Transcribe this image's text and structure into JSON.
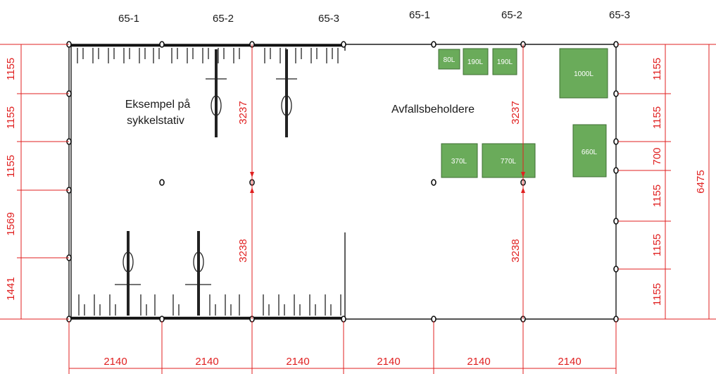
{
  "column_labels": [
    "65-1",
    "65-2",
    "65-3",
    "65-1",
    "65-2",
    "65-3"
  ],
  "notes": {
    "bike_rack": [
      "Eksempel på",
      "sykkelstativ"
    ],
    "bins": "Avfallsbeholdere"
  },
  "bins": [
    {
      "label": "80L"
    },
    {
      "label": "190L"
    },
    {
      "label": "190L"
    },
    {
      "label": "1000L"
    },
    {
      "label": "370L"
    },
    {
      "label": "770L"
    },
    {
      "label": "660L"
    }
  ],
  "dimensions": {
    "left": [
      "1155",
      "1155",
      "1155",
      "1569",
      "1441"
    ],
    "right": [
      "1155",
      "1155",
      "700",
      "1155",
      "1155",
      "1155"
    ],
    "total_height": "6475",
    "bottom": [
      "2140",
      "2140",
      "2140",
      "2140",
      "2140",
      "2140"
    ],
    "inner_bike": [
      "3237",
      "3238"
    ],
    "inner_bins": [
      "3237",
      "3238"
    ]
  },
  "colors": {
    "dimension": "#e02020",
    "bin_fill": "#6aab5a",
    "line": "#1a1a1a"
  }
}
